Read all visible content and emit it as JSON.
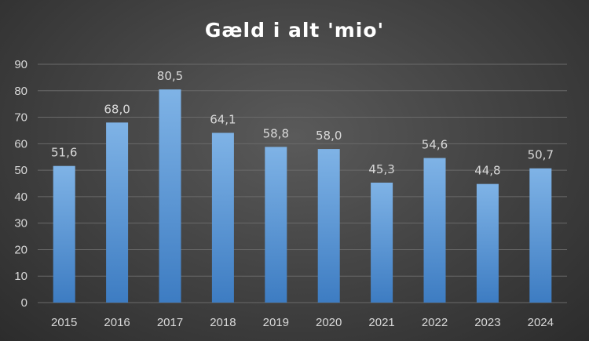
{
  "chart_data": {
    "type": "bar",
    "title": "Gæld i alt 'mio'",
    "xlabel": "",
    "ylabel": "",
    "categories": [
      "2015",
      "2016",
      "2017",
      "2018",
      "2019",
      "2020",
      "2021",
      "2022",
      "2023",
      "2024"
    ],
    "values": [
      51.6,
      68.0,
      80.5,
      64.1,
      58.8,
      58.0,
      45.3,
      54.6,
      44.8,
      50.7
    ],
    "data_labels": [
      "51,6",
      "68,0",
      "80,5",
      "64,1",
      "58,8",
      "58,0",
      "45,3",
      "54,6",
      "44,8",
      "50,7"
    ],
    "ylim": [
      0,
      90
    ],
    "yticks": [
      0,
      10,
      20,
      30,
      40,
      50,
      60,
      70,
      80,
      90
    ],
    "grid": true,
    "legend": "none"
  },
  "colors": {
    "bar_top": "#7fb3e6",
    "bar_bottom": "#3d7cc2",
    "grid": "#6a6a6a",
    "axis_text": "#d9d9d9",
    "data_label": "#d9d9d9",
    "title": "#ffffff"
  }
}
